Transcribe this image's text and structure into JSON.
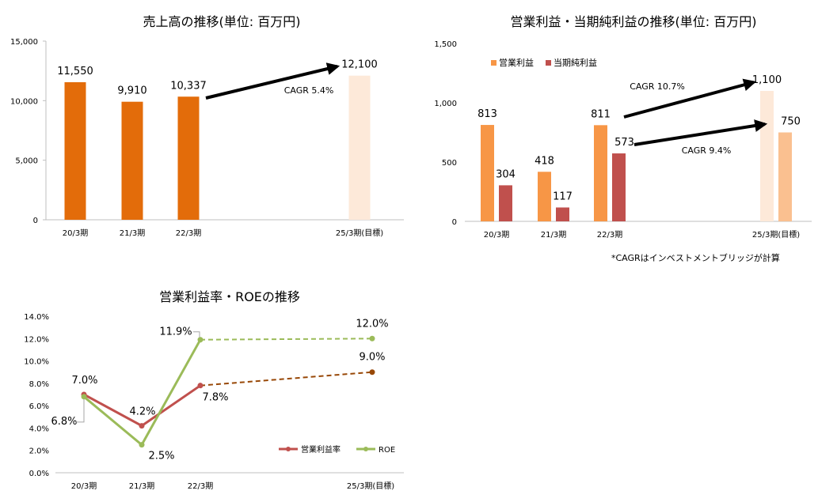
{
  "chart_data": [
    {
      "type": "bar",
      "title": "売上高の推移(単位: 百万円)",
      "categories": [
        "20/3期",
        "21/3期",
        "22/3期",
        "25/3期(目標)"
      ],
      "values": [
        11550,
        9910,
        10337,
        12100
      ],
      "data_labels": [
        "11,550",
        "9,910",
        "10,337",
        "12,100"
      ],
      "ylim": [
        0,
        15000
      ],
      "yticks": [
        0,
        5000,
        10000,
        15000
      ],
      "ytick_labels": [
        "0",
        "5,000",
        "10,000",
        "15,000"
      ],
      "annotation": "CAGR 5.4%",
      "colors": {
        "actual": "#E36C0A",
        "target": "#FDE9D9"
      },
      "grid": false
    },
    {
      "type": "bar",
      "title": "営業利益・当期純利益の推移(単位: 百万円)",
      "categories": [
        "20/3期",
        "21/3期",
        "22/3期",
        "25/3期(目標)"
      ],
      "series": [
        {
          "name": "営業利益",
          "values": [
            813,
            418,
            811,
            1100
          ],
          "labels": [
            "813",
            "418",
            "811",
            "1,100"
          ],
          "color": "#F79646",
          "target_color": "#FDE9D9"
        },
        {
          "name": "当期純利益",
          "values": [
            304,
            117,
            573,
            750
          ],
          "labels": [
            "304",
            "117",
            "573",
            "750"
          ],
          "color": "#C0504D",
          "target_color": "#FAC090"
        }
      ],
      "ylim": [
        0,
        1500
      ],
      "yticks": [
        0,
        500,
        1000,
        1500
      ],
      "ytick_labels": [
        "0",
        "500",
        "1,000",
        "1,500"
      ],
      "annotations": [
        "CAGR 10.7%",
        "CAGR 9.4%"
      ],
      "legend_position": "top-left",
      "grid": false
    },
    {
      "type": "line",
      "title": "営業利益率・ROEの推移",
      "categories": [
        "20/3期",
        "21/3期",
        "22/3期",
        "25/3期(目標)"
      ],
      "series": [
        {
          "name": "営業利益率",
          "values": [
            7.0,
            4.2,
            7.8,
            9.0
          ],
          "labels": [
            "7.0%",
            "4.2%",
            "7.8%",
            "9.0%"
          ],
          "color": "#C0504D",
          "target_color": "#984807"
        },
        {
          "name": "ROE",
          "values": [
            6.8,
            2.5,
            11.9,
            12.0
          ],
          "labels": [
            "6.8%",
            "2.5%",
            "11.9%",
            "12.0%"
          ],
          "color": "#9BBB59",
          "target_color": "#9BBB59"
        }
      ],
      "ylim": [
        0,
        14
      ],
      "yticks": [
        0,
        2,
        4,
        6,
        8,
        10,
        12,
        14
      ],
      "ytick_labels": [
        "0.0%",
        "2.0%",
        "4.0%",
        "6.0%",
        "8.0%",
        "10.0%",
        "12.0%",
        "14.0%"
      ],
      "legend_position": "bottom-right",
      "grid": false
    }
  ],
  "footnote": "*CAGRはインベストメントブリッジが計算"
}
